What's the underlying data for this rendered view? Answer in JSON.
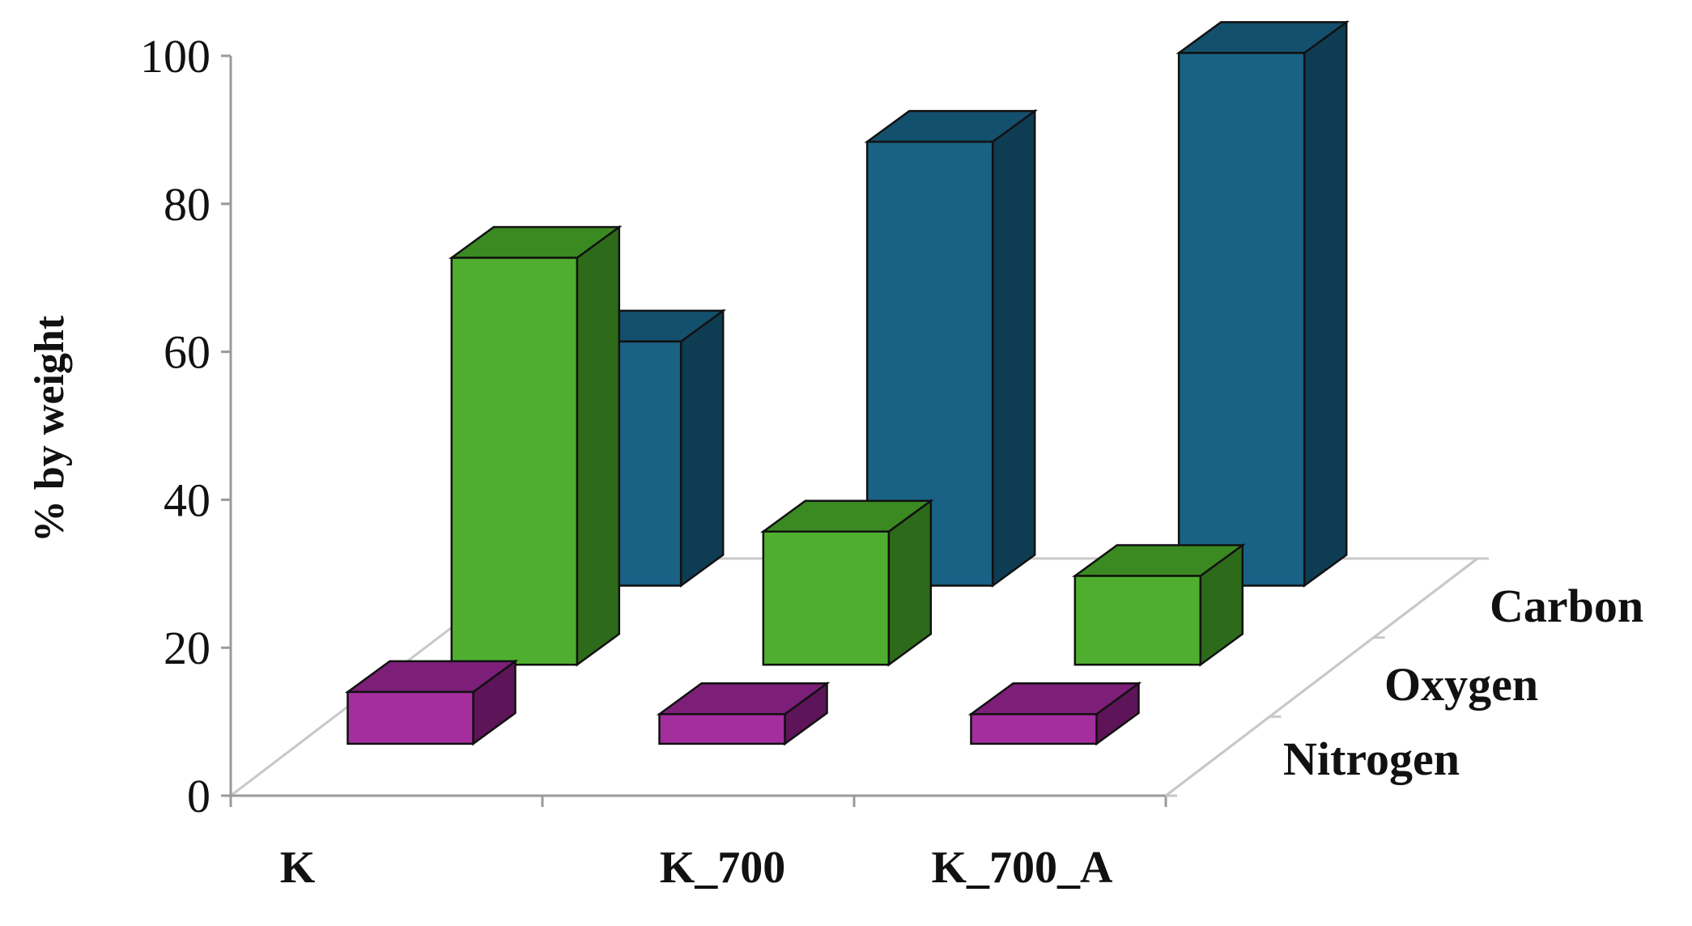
{
  "chart_data": {
    "type": "bar",
    "subtype": "3d-column",
    "title": "",
    "ylabel": "% by weight",
    "xlabel": "",
    "ylim": [
      0,
      100
    ],
    "yticks": [
      "0",
      "20",
      "40",
      "60",
      "80",
      "100"
    ],
    "categories": [
      "K",
      "K_700",
      "K_700_A"
    ],
    "series": [
      {
        "name": "Nitrogen",
        "values": [
          7,
          4,
          4
        ]
      },
      {
        "name": "Oxygen",
        "values": [
          55,
          18,
          12
        ]
      },
      {
        "name": "Carbon",
        "values": [
          33,
          60,
          72
        ]
      }
    ],
    "colors": {
      "Nitrogen": {
        "front": "#a52e9f",
        "top": "#7d1f78",
        "side": "#5e1459"
      },
      "Oxygen": {
        "front": "#4fae2f",
        "top": "#3a8a21",
        "side": "#2d6b1a"
      },
      "Carbon": {
        "front": "#1a6285",
        "top": "#13506d",
        "side": "#0e3c53"
      }
    },
    "grid": false,
    "legend": "depth-axis-labels-right"
  }
}
